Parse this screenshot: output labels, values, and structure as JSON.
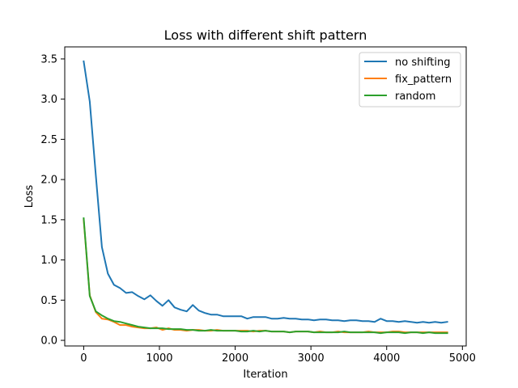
{
  "chart_data": {
    "type": "line",
    "title": "Loss with different shift pattern",
    "xlabel": "Iteration",
    "ylabel": "Loss",
    "xlim": [
      -250,
      5050
    ],
    "ylim": [
      -0.07,
      3.65
    ],
    "xticks": [
      0,
      1000,
      2000,
      3000,
      4000,
      5000
    ],
    "xtick_labels": [
      "0",
      "1000",
      "2000",
      "3000",
      "4000",
      "5000"
    ],
    "yticks": [
      0.0,
      0.5,
      1.0,
      1.5,
      2.0,
      2.5,
      3.0,
      3.5
    ],
    "ytick_labels": [
      "0.0",
      "0.5",
      "1.0",
      "1.5",
      "2.0",
      "2.5",
      "3.0",
      "3.5"
    ],
    "grid": false,
    "legend_position": "top-right",
    "x": [
      0,
      80,
      160,
      240,
      320,
      400,
      480,
      560,
      640,
      720,
      800,
      880,
      960,
      1040,
      1120,
      1200,
      1280,
      1360,
      1440,
      1520,
      1600,
      1680,
      1760,
      1840,
      1920,
      2000,
      2080,
      2160,
      2240,
      2320,
      2400,
      2480,
      2560,
      2640,
      2720,
      2800,
      2880,
      2960,
      3040,
      3120,
      3200,
      3280,
      3360,
      3440,
      3520,
      3600,
      3680,
      3760,
      3840,
      3920,
      4000,
      4080,
      4160,
      4240,
      4320,
      4400,
      4480,
      4560,
      4640,
      4720,
      4800
    ],
    "series": [
      {
        "name": "no shifting",
        "color": "#1f77b4",
        "values": [
          3.47,
          2.97,
          2.05,
          1.16,
          0.83,
          0.69,
          0.65,
          0.59,
          0.6,
          0.55,
          0.51,
          0.56,
          0.49,
          0.43,
          0.5,
          0.41,
          0.38,
          0.36,
          0.44,
          0.37,
          0.34,
          0.32,
          0.32,
          0.3,
          0.3,
          0.3,
          0.3,
          0.27,
          0.29,
          0.29,
          0.29,
          0.27,
          0.27,
          0.28,
          0.27,
          0.27,
          0.26,
          0.26,
          0.25,
          0.26,
          0.26,
          0.25,
          0.25,
          0.24,
          0.25,
          0.25,
          0.24,
          0.24,
          0.23,
          0.27,
          0.24,
          0.24,
          0.23,
          0.24,
          0.23,
          0.22,
          0.23,
          0.22,
          0.23,
          0.22,
          0.23
        ]
      },
      {
        "name": "fix_pattern",
        "color": "#ff7f0e",
        "values": [
          1.5,
          0.56,
          0.35,
          0.27,
          0.26,
          0.23,
          0.19,
          0.19,
          0.17,
          0.16,
          0.15,
          0.15,
          0.16,
          0.13,
          0.15,
          0.13,
          0.13,
          0.12,
          0.13,
          0.13,
          0.12,
          0.12,
          0.13,
          0.12,
          0.12,
          0.12,
          0.12,
          0.12,
          0.11,
          0.12,
          0.12,
          0.11,
          0.11,
          0.11,
          0.1,
          0.11,
          0.11,
          0.11,
          0.1,
          0.11,
          0.1,
          0.1,
          0.11,
          0.1,
          0.1,
          0.1,
          0.1,
          0.11,
          0.1,
          0.1,
          0.1,
          0.11,
          0.11,
          0.1,
          0.1,
          0.1,
          0.1,
          0.1,
          0.1,
          0.1,
          0.1
        ]
      },
      {
        "name": "random",
        "color": "#2ca02c",
        "values": [
          1.52,
          0.55,
          0.36,
          0.31,
          0.27,
          0.24,
          0.23,
          0.21,
          0.19,
          0.17,
          0.16,
          0.15,
          0.15,
          0.15,
          0.14,
          0.14,
          0.14,
          0.13,
          0.13,
          0.12,
          0.12,
          0.13,
          0.12,
          0.12,
          0.12,
          0.12,
          0.11,
          0.11,
          0.12,
          0.11,
          0.12,
          0.11,
          0.11,
          0.11,
          0.1,
          0.11,
          0.11,
          0.11,
          0.1,
          0.1,
          0.1,
          0.1,
          0.1,
          0.11,
          0.1,
          0.1,
          0.1,
          0.1,
          0.1,
          0.09,
          0.1,
          0.1,
          0.1,
          0.09,
          0.1,
          0.1,
          0.09,
          0.1,
          0.09,
          0.09,
          0.09
        ]
      }
    ]
  }
}
